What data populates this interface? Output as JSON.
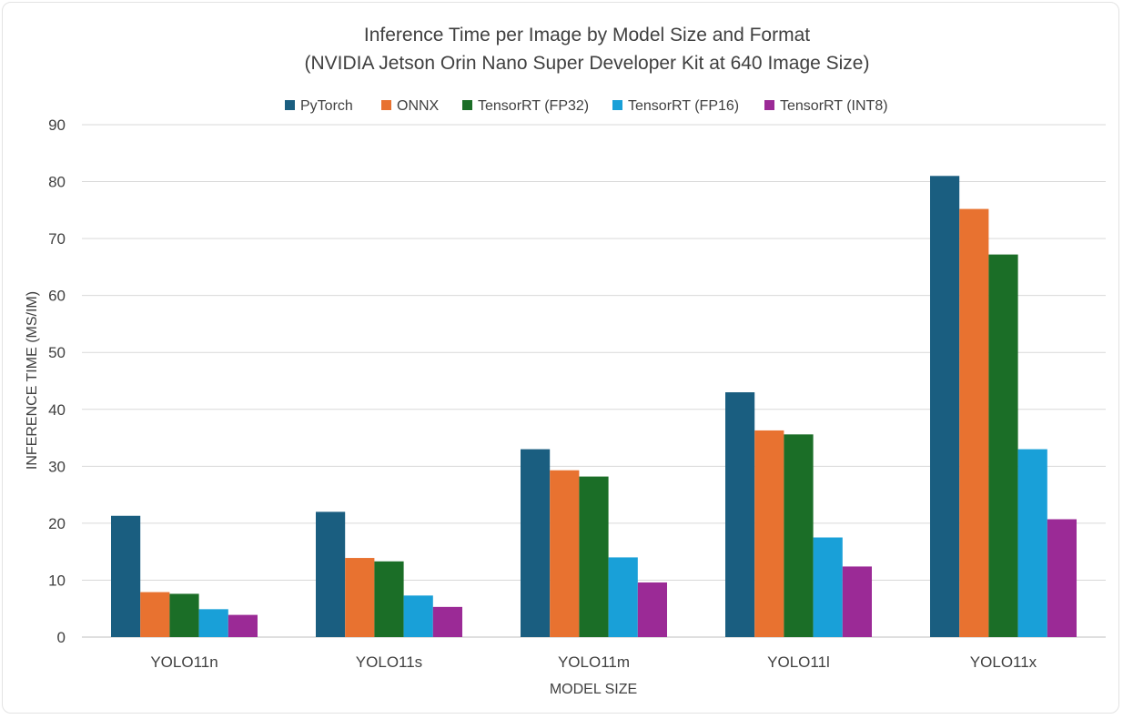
{
  "chart_data": {
    "type": "bar",
    "title": "Inference Time per Image by Model Size and Format",
    "subtitle": "(NVIDIA Jetson Orin Nano Super Developer Kit at 640 Image Size)",
    "xlabel": "MODEL SIZE",
    "ylabel": "INFERENCE TIME (MS/IM)",
    "ylim": [
      0,
      90
    ],
    "yticks": [
      "0",
      "10",
      "20",
      "30",
      "40",
      "50",
      "60",
      "70",
      "80",
      "90"
    ],
    "grid": true,
    "legend_position": "top",
    "categories": [
      "YOLO11n",
      "YOLO11s",
      "YOLO11m",
      "YOLO11l",
      "YOLO11x"
    ],
    "series": [
      {
        "name": "PyTorch",
        "color": "#1a5e80",
        "values": [
          21.3,
          22.0,
          33.0,
          43.0,
          81.0
        ]
      },
      {
        "name": "ONNX",
        "color": "#e87230",
        "values": [
          7.9,
          13.9,
          29.3,
          36.3,
          75.2
        ]
      },
      {
        "name": "TensorRT (FP32)",
        "color": "#1b6e27",
        "values": [
          7.6,
          13.3,
          28.2,
          35.6,
          67.2
        ]
      },
      {
        "name": "TensorRT (FP16)",
        "color": "#19a0d8",
        "values": [
          4.9,
          7.3,
          14.0,
          17.5,
          33.0
        ]
      },
      {
        "name": "TensorRT (INT8)",
        "color": "#9b2a96",
        "values": [
          3.9,
          5.3,
          9.6,
          12.4,
          20.7
        ]
      }
    ]
  }
}
